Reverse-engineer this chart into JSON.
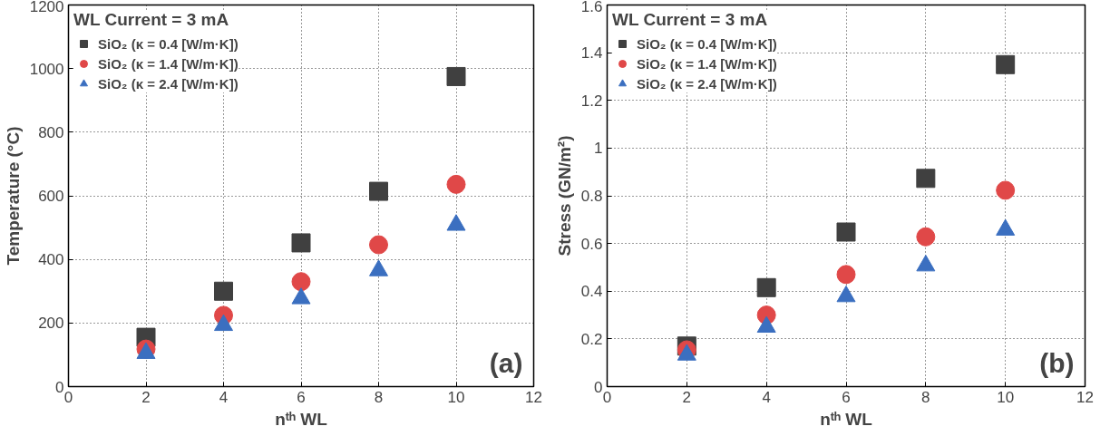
{
  "chart_data": [
    {
      "type": "scatter",
      "xlabel": "nᵗʰ WL",
      "ylabel": "Temperature (°C)",
      "legend_title": "WL Current = 3 mA",
      "legend": "top left",
      "grid": true,
      "annotations": [
        "(a)"
      ],
      "x": [
        2,
        4,
        6,
        8,
        10
      ],
      "xlim": [
        0,
        12
      ],
      "xticks": [
        0,
        2,
        4,
        6,
        8,
        10,
        12
      ],
      "ylim": [
        0,
        1200
      ],
      "yticks": [
        0,
        200,
        400,
        600,
        800,
        1000,
        1200
      ],
      "series": [
        {
          "name": "SiO₂ (κ = 0.4 [W/m·K])",
          "color": "#404040",
          "marker": "square",
          "values": [
            155,
            300,
            452,
            614,
            975
          ]
        },
        {
          "name": "SiO₂ (κ = 1.4 [W/m·K])",
          "color": "#e04848",
          "marker": "circle",
          "values": [
            118,
            224,
            330,
            446,
            636
          ]
        },
        {
          "name": "SiO₂ (κ = 2.4 [W/m·K])",
          "color": "#3b6fc0",
          "marker": "triangle",
          "values": [
            105,
            193,
            277,
            365,
            508
          ]
        }
      ]
    },
    {
      "type": "scatter",
      "xlabel": "nᵗʰ WL",
      "ylabel": "Stress (GN/m²)",
      "legend_title": "WL Current = 3 mA",
      "legend": "top left",
      "grid": true,
      "annotations": [
        "(b)"
      ],
      "x": [
        2,
        4,
        6,
        8,
        10
      ],
      "xlim": [
        0,
        12
      ],
      "xticks": [
        0,
        2,
        4,
        6,
        8,
        10,
        12
      ],
      "ylim": [
        0,
        1.6
      ],
      "yticks": [
        0,
        0.2,
        0.4,
        0.6,
        0.8,
        1,
        1.2,
        1.4,
        1.6
      ],
      "series": [
        {
          "name": "SiO₂ (κ = 0.4 [W/m·K])",
          "color": "#404040",
          "marker": "square",
          "values": [
            0.17,
            0.415,
            0.648,
            0.873,
            1.35
          ]
        },
        {
          "name": "SiO₂ (κ = 1.4 [W/m·K])",
          "color": "#e04848",
          "marker": "circle",
          "values": [
            0.154,
            0.3,
            0.47,
            0.628,
            0.823
          ]
        },
        {
          "name": "SiO₂ (κ = 2.4 [W/m·K])",
          "color": "#3b6fc0",
          "marker": "triangle",
          "values": [
            0.133,
            0.25,
            0.378,
            0.507,
            0.657
          ]
        }
      ]
    }
  ]
}
